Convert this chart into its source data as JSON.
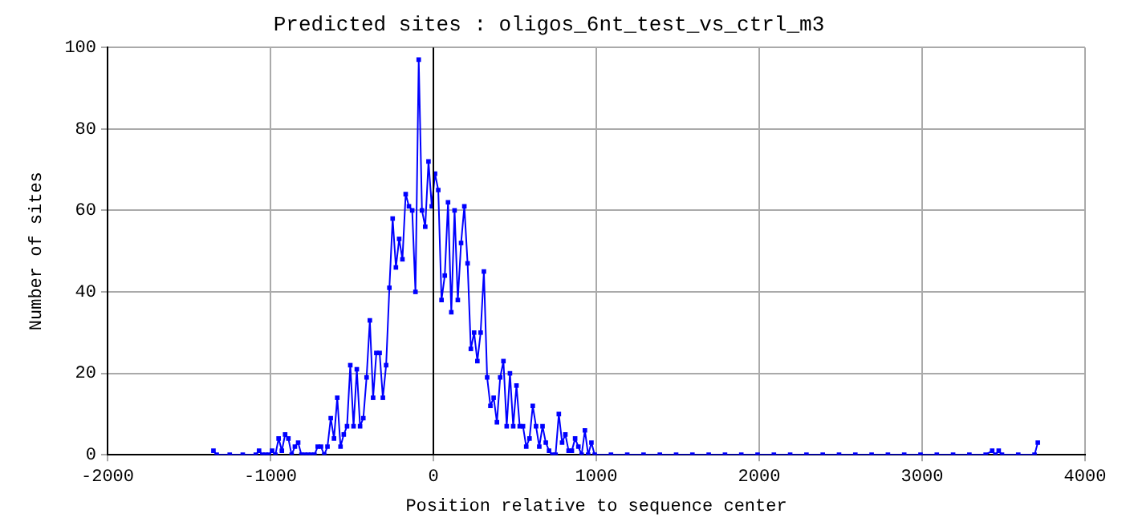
{
  "chart_data": {
    "type": "line",
    "title": "Predicted sites : oligos_6nt_test_vs_ctrl_m3",
    "xlabel": "Position relative to sequence center",
    "ylabel": "Number of sites",
    "x": [
      -1350,
      -1330,
      -1250,
      -1170,
      -1090,
      -1070,
      -1050,
      -1030,
      -1010,
      -990,
      -970,
      -950,
      -930,
      -910,
      -890,
      -870,
      -850,
      -830,
      -810,
      -790,
      -770,
      -750,
      -730,
      -710,
      -690,
      -670,
      -650,
      -630,
      -610,
      -590,
      -570,
      -550,
      -530,
      -510,
      -490,
      -470,
      -450,
      -430,
      -410,
      -390,
      -370,
      -350,
      -330,
      -310,
      -290,
      -270,
      -250,
      -230,
      -210,
      -190,
      -170,
      -150,
      -130,
      -110,
      -90,
      -70,
      -50,
      -30,
      -10,
      10,
      30,
      50,
      70,
      90,
      110,
      130,
      150,
      170,
      190,
      210,
      230,
      250,
      270,
      290,
      310,
      330,
      350,
      370,
      390,
      410,
      430,
      450,
      470,
      490,
      510,
      530,
      550,
      570,
      590,
      610,
      630,
      650,
      670,
      690,
      710,
      730,
      750,
      770,
      790,
      810,
      830,
      850,
      870,
      890,
      910,
      930,
      950,
      970,
      990,
      1090,
      1190,
      1290,
      1390,
      1490,
      1590,
      1690,
      1790,
      1890,
      1990,
      2090,
      2190,
      2290,
      2390,
      2490,
      2590,
      2690,
      2790,
      2890,
      2990,
      3090,
      3190,
      3290,
      3390,
      3430,
      3450,
      3470,
      3490,
      3590,
      3690,
      3710
    ],
    "values": [
      1,
      0,
      0,
      0,
      0,
      1,
      0,
      0,
      0,
      1,
      0,
      4,
      1,
      5,
      4,
      0,
      2,
      3,
      0,
      0,
      0,
      0,
      0,
      2,
      2,
      0,
      2,
      9,
      4,
      14,
      2,
      5,
      7,
      22,
      7,
      21,
      7,
      9,
      19,
      33,
      14,
      25,
      25,
      14,
      22,
      41,
      58,
      46,
      53,
      48,
      64,
      61,
      60,
      40,
      97,
      60,
      56,
      72,
      61,
      69,
      65,
      38,
      44,
      62,
      35,
      60,
      38,
      52,
      61,
      47,
      26,
      30,
      23,
      30,
      45,
      19,
      12,
      14,
      8,
      19,
      23,
      7,
      20,
      7,
      17,
      7,
      7,
      2,
      4,
      12,
      7,
      2,
      7,
      3,
      1,
      0,
      0,
      10,
      3,
      5,
      1,
      1,
      4,
      2,
      0,
      6,
      0,
      3,
      0,
      0,
      0,
      0,
      0,
      0,
      0,
      0,
      0,
      0,
      0,
      0,
      0,
      0,
      0,
      0,
      0,
      0,
      0,
      0,
      0,
      0,
      0,
      0,
      0,
      1,
      0,
      1,
      0,
      0,
      0,
      3
    ],
    "color": "#0000ff",
    "marker": "square",
    "line_style": "solid",
    "xlim": [
      -2000,
      4000
    ],
    "xticks": [
      -2000,
      -1000,
      0,
      1000,
      2000,
      3000,
      4000
    ],
    "ylim": [
      0,
      100
    ],
    "yticks": [
      0,
      20,
      40,
      60,
      80,
      100
    ],
    "grid": true,
    "ref_lines": [
      {
        "axis": "x",
        "value": 0,
        "color": "#000000"
      }
    ]
  }
}
